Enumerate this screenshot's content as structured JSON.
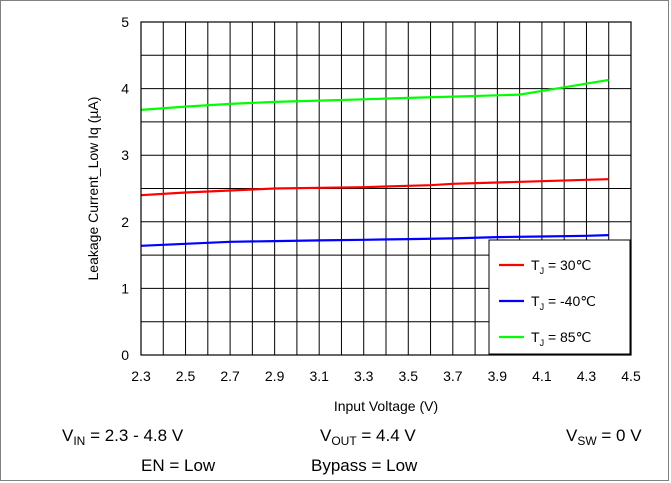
{
  "chart_data": {
    "type": "line",
    "title": "",
    "xlabel": "Input Voltage (V)",
    "ylabel": "Leakage Current_Low Iq (µA)",
    "xlim": [
      2.3,
      4.5
    ],
    "ylim": [
      0,
      5
    ],
    "x_ticks": [
      "2.3",
      "2.5",
      "2.7",
      "2.9",
      "3.1",
      "3.3",
      "3.5",
      "3.7",
      "3.9",
      "4.1",
      "4.3",
      "4.5"
    ],
    "y_ticks": [
      "0",
      "1",
      "2",
      "3",
      "4",
      "5"
    ],
    "grid": true,
    "legend_position": "bottom-right",
    "series": [
      {
        "legend_main": "T",
        "legend_sub": "J",
        "legend_rest": " = 30℃",
        "color": "#ff0000",
        "x": [
          2.3,
          2.5,
          2.7,
          2.9,
          3.1,
          3.3,
          3.5,
          3.6,
          3.7,
          3.9,
          4.1,
          4.3,
          4.4
        ],
        "y": [
          2.4,
          2.44,
          2.47,
          2.5,
          2.51,
          2.52,
          2.54,
          2.55,
          2.57,
          2.59,
          2.61,
          2.63,
          2.64
        ]
      },
      {
        "legend_main": "T",
        "legend_sub": "J",
        "legend_rest": " = -40℃",
        "color": "#0000ff",
        "x": [
          2.3,
          2.5,
          2.7,
          2.9,
          3.1,
          3.3,
          3.5,
          3.7,
          3.9,
          4.1,
          4.3,
          4.4
        ],
        "y": [
          1.64,
          1.67,
          1.7,
          1.71,
          1.72,
          1.73,
          1.74,
          1.75,
          1.77,
          1.78,
          1.79,
          1.8
        ]
      },
      {
        "legend_main": "T",
        "legend_sub": "J",
        "legend_rest": " = 85℃",
        "color": "#00ff00",
        "x": [
          2.3,
          2.5,
          2.7,
          2.9,
          3.1,
          3.3,
          3.5,
          3.7,
          3.9,
          4.0,
          4.2,
          4.4
        ],
        "y": [
          3.68,
          3.73,
          3.77,
          3.8,
          3.82,
          3.84,
          3.86,
          3.88,
          3.9,
          3.91,
          4.02,
          4.13
        ]
      }
    ]
  },
  "conditions": {
    "vin": {
      "main": "V",
      "sub": "IN",
      "rest": " = 2.3 - 4.8 V"
    },
    "vout": {
      "main": "V",
      "sub": "OUT",
      "rest": " = 4.4 V"
    },
    "vsw": {
      "main": "V",
      "sub": "SW",
      "rest": " = 0 V"
    },
    "en": "EN = Low",
    "bypass": "Bypass = Low"
  }
}
